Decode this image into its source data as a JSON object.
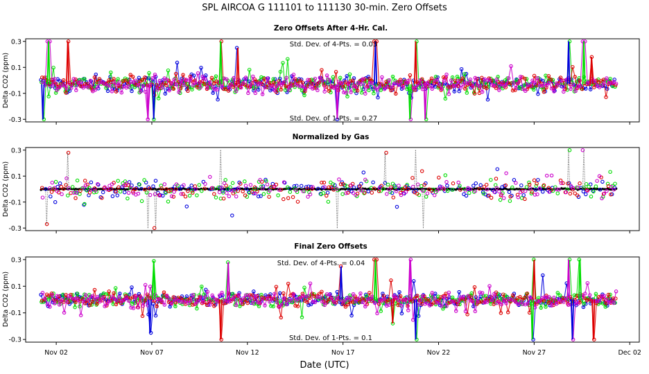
{
  "chart_data": {
    "type": "scatter",
    "title": "SPL   AIRCOA G   111101 to 111130   30-min. Zero Offsets",
    "xlabel": "Date (UTC)",
    "x_ticks": [
      "Nov 02",
      "Nov 07",
      "Nov 12",
      "Nov 17",
      "Nov 22",
      "Nov 27",
      "Dec 02"
    ],
    "x_tick_days": [
      2,
      7,
      12,
      17,
      22,
      27,
      32
    ],
    "xlim_days": [
      0.4,
      32.5
    ],
    "data_range_days": [
      1.2,
      31.3
    ],
    "colors": {
      "gas1": "#0000dd",
      "gas2": "#00dd00",
      "gas3": "#dd0000",
      "gas4": "#cc00cc",
      "gas5": "#000000"
    },
    "panels": [
      {
        "title": "Zero Offsets After 4-Hr. Cal.",
        "ylabel": "Delta CO2 (ppm)",
        "ylim": [
          -0.32,
          0.32
        ],
        "y_ticks": [
          -0.3,
          -0.1,
          0.1,
          0.3
        ],
        "y_tick_labels": [
          "-0.3",
          "-0.1",
          "0.1",
          "0.3"
        ],
        "annotation_top": "Std. Dev. of 4-Pts. = 0.03",
        "annotation_bottom": "Std. Dev. of 1-Pts. = 0.27",
        "center": -0.03,
        "scatter": 0.045,
        "spikes": [
          {
            "day": 1.3,
            "value": -0.3
          },
          {
            "day": 1.6,
            "value": 0.3
          },
          {
            "day": 2.6,
            "value": 0.3
          },
          {
            "day": 6.8,
            "value": -0.3
          },
          {
            "day": 7.1,
            "value": -0.3
          },
          {
            "day": 10.6,
            "value": 0.3
          },
          {
            "day": 11.5,
            "value": 0.25
          },
          {
            "day": 16.7,
            "value": -0.3
          },
          {
            "day": 18.7,
            "value": 0.3
          },
          {
            "day": 20.5,
            "value": -0.3
          },
          {
            "day": 20.8,
            "value": 0.3
          },
          {
            "day": 21.3,
            "value": -0.3
          },
          {
            "day": 28.8,
            "value": 0.3
          },
          {
            "day": 29.6,
            "value": 0.3
          },
          {
            "day": 30.0,
            "value": 0.18
          }
        ]
      },
      {
        "title": "Normalized by Gas",
        "ylabel": "Delta CO2 (ppm)",
        "ylim": [
          -0.32,
          0.32
        ],
        "y_ticks": [
          -0.3,
          -0.1,
          0.1,
          0.3
        ],
        "y_tick_labels": [
          "-0.3",
          "-0.1",
          "0.1",
          "0.3"
        ],
        "annotation_top": "",
        "annotation_bottom": "",
        "center": 0.0,
        "scatter": 0.05,
        "reference_level": 0.0,
        "spikes": [
          {
            "day": 1.5,
            "value": -0.27
          },
          {
            "day": 2.6,
            "value": 0.28
          },
          {
            "day": 6.8,
            "value": -0.3
          },
          {
            "day": 7.2,
            "value": -0.3
          },
          {
            "day": 10.6,
            "value": 0.3
          },
          {
            "day": 16.7,
            "value": -0.3
          },
          {
            "day": 19.2,
            "value": 0.28
          },
          {
            "day": 20.8,
            "value": 0.3
          },
          {
            "day": 21.2,
            "value": -0.3
          },
          {
            "day": 28.8,
            "value": 0.3
          },
          {
            "day": 29.6,
            "value": 0.3
          }
        ]
      },
      {
        "title": "Final Zero Offsets",
        "ylabel": "Delta CO2 (ppm)",
        "ylim": [
          -0.32,
          0.32
        ],
        "y_ticks": [
          -0.3,
          -0.1,
          0.1,
          0.3
        ],
        "y_tick_labels": [
          "-0.3",
          "-0.1",
          "0.1",
          "0.3"
        ],
        "annotation_top": "Std. Dev. of 4-Pts. = 0.04",
        "annotation_bottom": "Std. Dev. of 1-Pts. = 0.1",
        "center": 0.0,
        "scatter": 0.035,
        "spikes": [
          {
            "day": 6.9,
            "value": -0.25
          },
          {
            "day": 7.1,
            "value": 0.29
          },
          {
            "day": 10.6,
            "value": -0.3
          },
          {
            "day": 11.0,
            "value": 0.28
          },
          {
            "day": 16.9,
            "value": 0.25
          },
          {
            "day": 18.7,
            "value": 0.3
          },
          {
            "day": 19.6,
            "value": -0.18
          },
          {
            "day": 20.5,
            "value": 0.3
          },
          {
            "day": 20.8,
            "value": -0.3
          },
          {
            "day": 26.9,
            "value": -0.3
          },
          {
            "day": 27.0,
            "value": 0.3
          },
          {
            "day": 28.8,
            "value": 0.3
          },
          {
            "day": 29.0,
            "value": -0.3
          },
          {
            "day": 29.4,
            "value": 0.3
          },
          {
            "day": 30.1,
            "value": -0.3
          }
        ]
      }
    ]
  }
}
